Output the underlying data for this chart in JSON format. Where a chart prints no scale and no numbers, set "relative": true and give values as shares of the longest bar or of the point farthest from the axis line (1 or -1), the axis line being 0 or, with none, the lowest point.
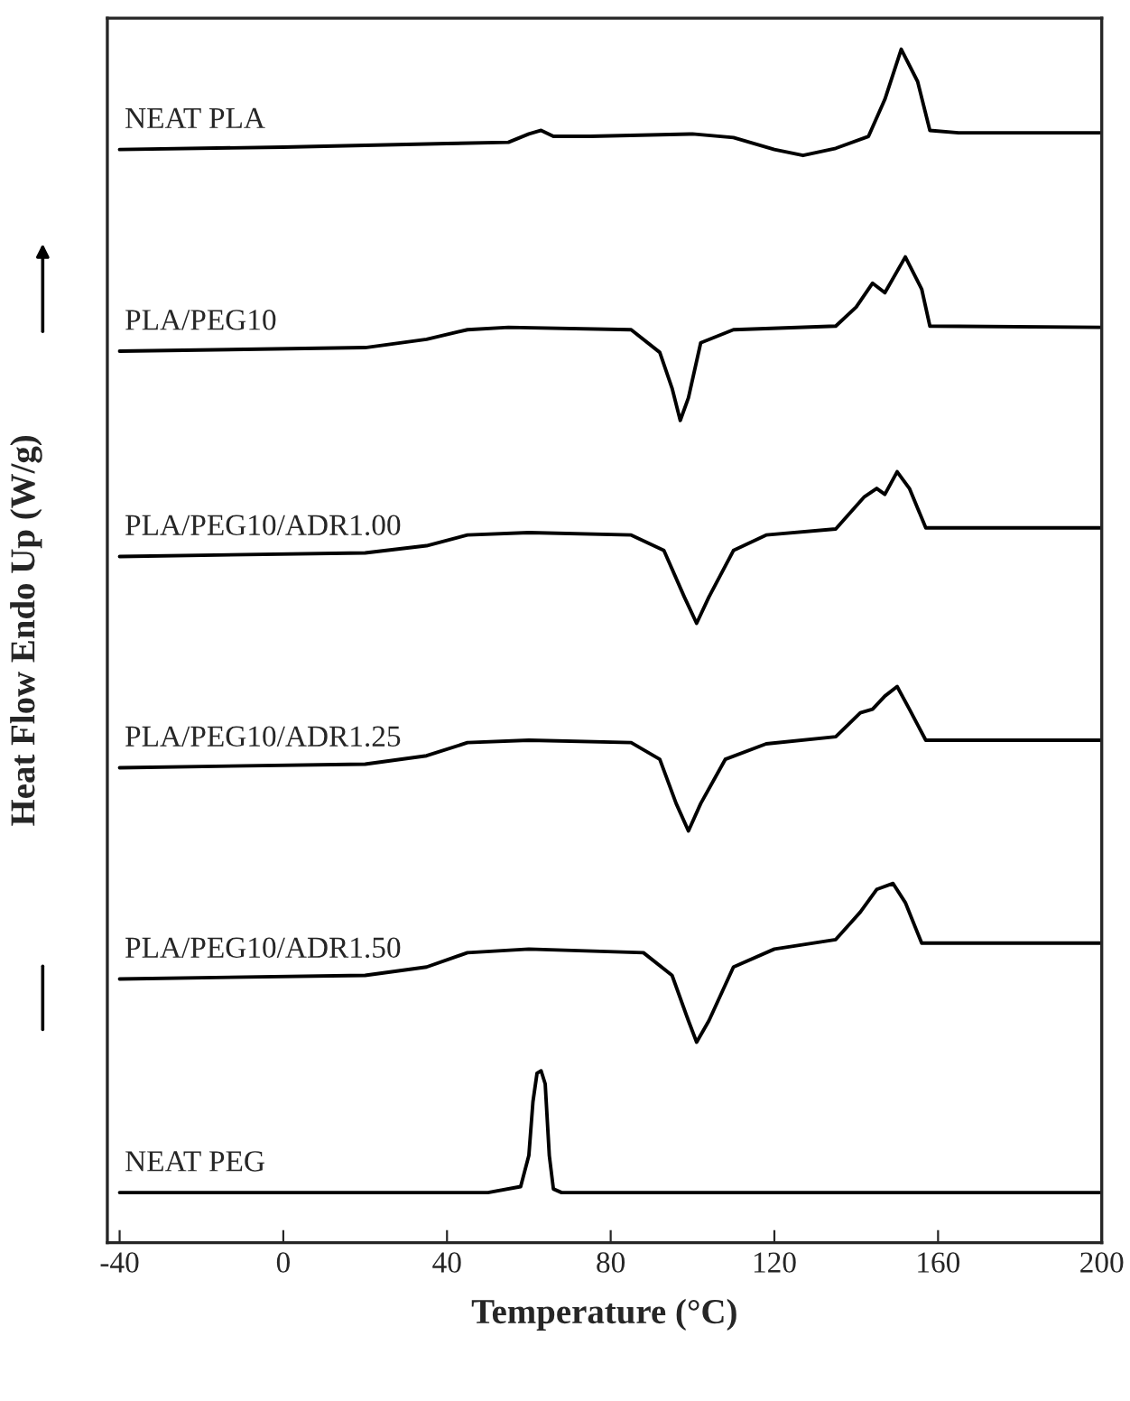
{
  "chart_data": {
    "type": "line",
    "relative": true,
    "xlabel": "Temperature (°C)",
    "ylabel": "Heat Flow Endo Up (W/g)",
    "xlim": [
      -43,
      200
    ],
    "xticks": [
      -40,
      0,
      40,
      80,
      120,
      160,
      200
    ],
    "grid": false,
    "tick_labels": "x",
    "marker": "none",
    "line_style": "solid",
    "series": [
      {
        "name": "NEAT PLA",
        "color": "#000000",
        "x": [
          -40,
          0,
          40,
          55,
          60,
          63,
          66,
          75,
          100,
          110,
          120,
          127,
          135,
          143,
          147,
          151,
          155,
          158,
          165,
          200
        ],
        "values": [
          0.916,
          0.918,
          0.921,
          0.922,
          0.929,
          0.932,
          0.927,
          0.927,
          0.929,
          0.926,
          0.916,
          0.911,
          0.917,
          0.927,
          0.958,
          1.0,
          0.973,
          0.932,
          0.93,
          0.93
        ]
      },
      {
        "name": "PLA/PEG10",
        "color": "#000000",
        "x": [
          -40,
          20,
          35,
          45,
          55,
          85,
          92,
          95,
          97,
          99,
          102,
          110,
          135,
          140,
          144,
          147,
          152,
          156,
          158,
          200
        ],
        "values": [
          0.747,
          0.75,
          0.757,
          0.765,
          0.767,
          0.765,
          0.746,
          0.716,
          0.689,
          0.708,
          0.754,
          0.765,
          0.768,
          0.784,
          0.804,
          0.796,
          0.826,
          0.799,
          0.768,
          0.767
        ]
      },
      {
        "name": "PLA/PEG10/ADR1.00",
        "color": "#000000",
        "x": [
          -40,
          20,
          35,
          45,
          60,
          85,
          93,
          98,
          101,
          104,
          110,
          118,
          135,
          142,
          145,
          147,
          150,
          153,
          157,
          200
        ],
        "values": [
          0.575,
          0.578,
          0.584,
          0.593,
          0.595,
          0.593,
          0.58,
          0.541,
          0.519,
          0.541,
          0.58,
          0.593,
          0.598,
          0.625,
          0.632,
          0.627,
          0.646,
          0.632,
          0.599,
          0.599
        ]
      },
      {
        "name": "PLA/PEG10/ADR1.25",
        "color": "#000000",
        "x": [
          -40,
          20,
          35,
          45,
          60,
          85,
          92,
          96,
          99,
          102,
          108,
          118,
          135,
          141,
          144,
          147,
          150,
          153,
          157,
          200
        ],
        "values": [
          0.398,
          0.401,
          0.408,
          0.419,
          0.421,
          0.419,
          0.405,
          0.368,
          0.345,
          0.368,
          0.405,
          0.418,
          0.424,
          0.444,
          0.447,
          0.458,
          0.466,
          0.447,
          0.421,
          0.421
        ]
      },
      {
        "name": "PLA/PEG10/ADR1.50",
        "color": "#000000",
        "x": [
          -40,
          20,
          35,
          45,
          60,
          88,
          95,
          99,
          101,
          104,
          110,
          120,
          135,
          141,
          145,
          149,
          152,
          156,
          200
        ],
        "values": [
          0.221,
          0.224,
          0.231,
          0.243,
          0.246,
          0.243,
          0.224,
          0.186,
          0.168,
          0.186,
          0.231,
          0.246,
          0.254,
          0.277,
          0.296,
          0.301,
          0.285,
          0.251,
          0.251
        ]
      },
      {
        "name": "NEAT PEG",
        "color": "#000000",
        "x": [
          -40,
          50,
          58,
          60,
          61,
          62,
          63,
          64,
          65,
          66,
          68,
          200
        ],
        "values": [
          0.042,
          0.042,
          0.047,
          0.073,
          0.118,
          0.142,
          0.144,
          0.133,
          0.073,
          0.045,
          0.042,
          0.042
        ]
      }
    ]
  }
}
